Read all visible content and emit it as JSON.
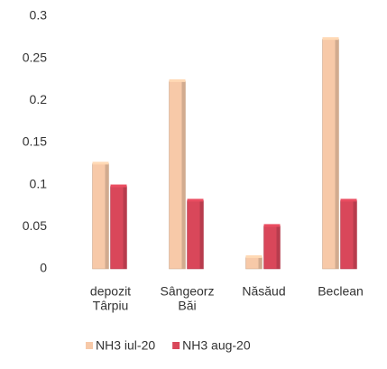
{
  "chart_data": {
    "type": "bar",
    "categories": [
      [
        "depozit",
        "Târpiu"
      ],
      [
        "Sângeorz",
        "Băi"
      ],
      [
        "Năsăud"
      ],
      [
        "Beclean"
      ]
    ],
    "series": [
      {
        "name": "NH3 iul-20",
        "color": "#f7c9a8",
        "values": [
          0.125,
          0.223,
          0.014,
          0.273
        ]
      },
      {
        "name": "NH3 aug-20",
        "color": "#d9475a",
        "values": [
          0.098,
          0.081,
          0.051,
          0.081
        ]
      }
    ],
    "ylim": [
      0,
      0.3
    ],
    "yticks": [
      0,
      0.05,
      0.1,
      0.15,
      0.2,
      0.25,
      0.3
    ],
    "grid": false
  }
}
